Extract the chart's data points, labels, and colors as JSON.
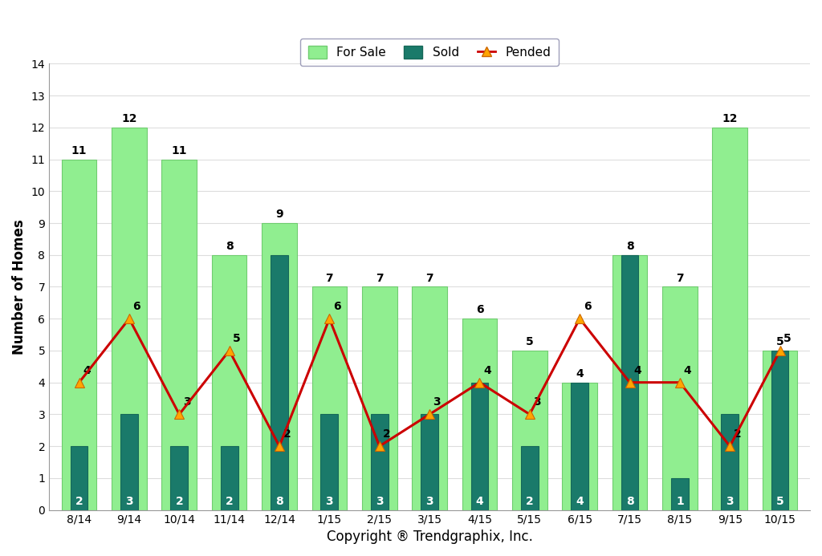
{
  "categories": [
    "8/14",
    "9/14",
    "10/14",
    "11/14",
    "12/14",
    "1/15",
    "2/15",
    "3/15",
    "4/15",
    "5/15",
    "6/15",
    "7/15",
    "8/15",
    "9/15",
    "10/15"
  ],
  "for_sale": [
    11,
    12,
    11,
    8,
    9,
    7,
    7,
    7,
    6,
    5,
    4,
    8,
    7,
    12,
    5
  ],
  "sold": [
    2,
    3,
    2,
    2,
    8,
    3,
    3,
    3,
    4,
    2,
    4,
    8,
    1,
    3,
    5
  ],
  "pended": [
    4,
    6,
    3,
    5,
    2,
    6,
    2,
    3,
    4,
    3,
    6,
    4,
    4,
    2,
    5
  ],
  "for_sale_color": "#90EE90",
  "sold_color": "#1A7A6A",
  "for_sale_edge_color": "#70CC70",
  "sold_edge_color": "#156858",
  "pended_line_color": "#CC0000",
  "pended_marker_facecolor": "#FFA500",
  "pended_marker_edgecolor": "#CC6600",
  "ylabel": "Number of Homes",
  "xlabel": "Copyright ® Trendgraphix, Inc.",
  "ylim": [
    0,
    14
  ],
  "yticks": [
    0,
    1,
    2,
    3,
    4,
    5,
    6,
    7,
    8,
    9,
    10,
    11,
    12,
    13,
    14
  ],
  "legend_for_sale": "For Sale",
  "legend_sold": "Sold",
  "legend_pended": "Pended",
  "background_color": "#FFFFFF",
  "plot_bg_color": "#FFFFFF",
  "label_fontsize": 12,
  "tick_fontsize": 10,
  "bar_label_fontsize": 10,
  "for_sale_bar_width": 0.7,
  "sold_bar_width": 0.35,
  "legend_edge_color": "#8888AA"
}
